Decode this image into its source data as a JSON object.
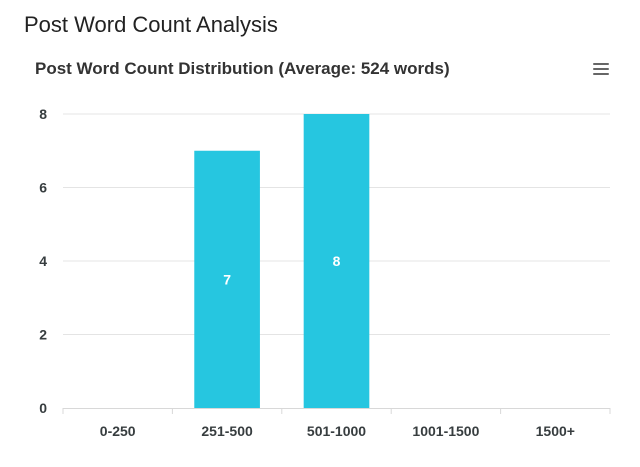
{
  "page": {
    "heading": "Post Word Count Analysis"
  },
  "toolbar": {
    "menu_icon": "hamburger-menu-icon"
  },
  "chart_data": {
    "type": "bar",
    "title": "Post Word Count Distribution (Average: 524 words)",
    "categories": [
      "0-250",
      "251-500",
      "501-1000",
      "1001-1500",
      "1500+"
    ],
    "series": [
      {
        "values": [
          0,
          7,
          8,
          0,
          0
        ]
      }
    ],
    "data_labels": [
      "",
      "7",
      "8",
      "",
      ""
    ],
    "ylim": [
      0,
      8
    ],
    "yticks": [
      0,
      2,
      4,
      6,
      8
    ],
    "xlabel": "",
    "ylabel": "",
    "grid": true,
    "bar_color": "#26c6e0",
    "grid_color": "#e4e4e4"
  }
}
